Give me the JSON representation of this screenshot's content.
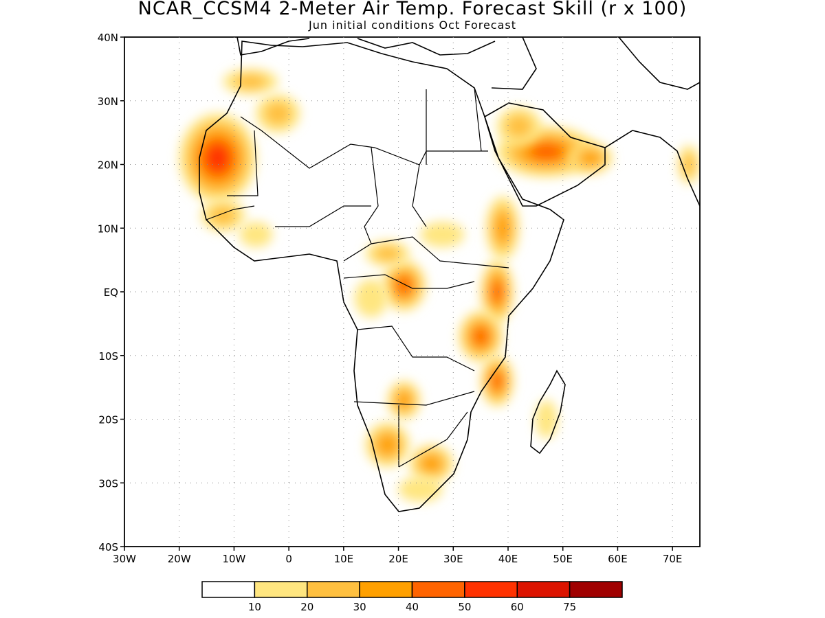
{
  "figure": {
    "title": "NCAR_CCSM4 2-Meter Air Temp. Forecast Skill (r x 100)",
    "subtitle": "Jun initial conditions  Oct Forecast"
  },
  "map": {
    "lon_range": [
      -30,
      75
    ],
    "lat_range": [
      -40,
      40
    ],
    "lat_ticks": [
      {
        "value": 40,
        "label": "40N"
      },
      {
        "value": 30,
        "label": "30N"
      },
      {
        "value": 20,
        "label": "20N"
      },
      {
        "value": 10,
        "label": "10N"
      },
      {
        "value": 0,
        "label": "EQ"
      },
      {
        "value": -10,
        "label": "10S"
      },
      {
        "value": -20,
        "label": "20S"
      },
      {
        "value": -30,
        "label": "30S"
      },
      {
        "value": -40,
        "label": "40S"
      }
    ],
    "lon_ticks": [
      {
        "value": -30,
        "label": "30W"
      },
      {
        "value": -20,
        "label": "20W"
      },
      {
        "value": -10,
        "label": "10W"
      },
      {
        "value": 0,
        "label": "0"
      },
      {
        "value": 10,
        "label": "10E"
      },
      {
        "value": 20,
        "label": "20E"
      },
      {
        "value": 30,
        "label": "30E"
      },
      {
        "value": 40,
        "label": "40E"
      },
      {
        "value": 50,
        "label": "50E"
      },
      {
        "value": 60,
        "label": "60E"
      },
      {
        "value": 70,
        "label": "70E"
      }
    ]
  },
  "colorbar": {
    "boundaries": [
      "10",
      "20",
      "30",
      "40",
      "50",
      "60",
      "75"
    ],
    "colors": [
      "#ffffff",
      "#ffe680",
      "#ffc040",
      "#ffa000",
      "#ff6400",
      "#ff3200",
      "#dc1400",
      "#a00000"
    ]
  },
  "skill_regions": [
    {
      "lon": -13,
      "lat": 21,
      "rx": 7,
      "ry": 7,
      "level": 5
    },
    {
      "lon": -2,
      "lat": 28,
      "rx": 4,
      "ry": 3,
      "level": 2
    },
    {
      "lon": -7,
      "lat": 33,
      "rx": 5,
      "ry": 2,
      "level": 2
    },
    {
      "lon": -12,
      "lat": 12,
      "rx": 4,
      "ry": 2.5,
      "level": 2
    },
    {
      "lon": -6,
      "lat": 9,
      "rx": 3,
      "ry": 2,
      "level": 1
    },
    {
      "lon": 21,
      "lat": 1,
      "rx": 4,
      "ry": 4,
      "level": 4
    },
    {
      "lon": 18,
      "lat": 6,
      "rx": 4,
      "ry": 2,
      "level": 2
    },
    {
      "lon": 28,
      "lat": 9,
      "rx": 4,
      "ry": 2,
      "level": 1
    },
    {
      "lon": 15,
      "lat": -1,
      "rx": 3,
      "ry": 3,
      "level": 1
    },
    {
      "lon": 39,
      "lat": 10,
      "rx": 3,
      "ry": 5,
      "level": 3
    },
    {
      "lon": 38,
      "lat": 0,
      "rx": 3,
      "ry": 5,
      "level": 4
    },
    {
      "lon": 35,
      "lat": -7,
      "rx": 4,
      "ry": 4,
      "level": 4
    },
    {
      "lon": 38,
      "lat": -14,
      "rx": 3,
      "ry": 4,
      "level": 4
    },
    {
      "lon": 47,
      "lat": 22,
      "rx": 9,
      "ry": 4,
      "level": 4
    },
    {
      "lon": 42,
      "lat": 26,
      "rx": 4,
      "ry": 3,
      "level": 2
    },
    {
      "lon": 55,
      "lat": 21,
      "rx": 4,
      "ry": 2.5,
      "level": 3
    },
    {
      "lon": 21,
      "lat": -17,
      "rx": 3,
      "ry": 3,
      "level": 3
    },
    {
      "lon": 18,
      "lat": -24,
      "rx": 4,
      "ry": 3.5,
      "level": 3
    },
    {
      "lon": 26,
      "lat": -27,
      "rx": 4,
      "ry": 3,
      "level": 3
    },
    {
      "lon": 24,
      "lat": -31,
      "rx": 4,
      "ry": 2,
      "level": 1
    },
    {
      "lon": 47,
      "lat": -20,
      "rx": 2,
      "ry": 3,
      "level": 1
    },
    {
      "lon": 73,
      "lat": 20,
      "rx": 2,
      "ry": 3,
      "level": 2
    }
  ]
}
